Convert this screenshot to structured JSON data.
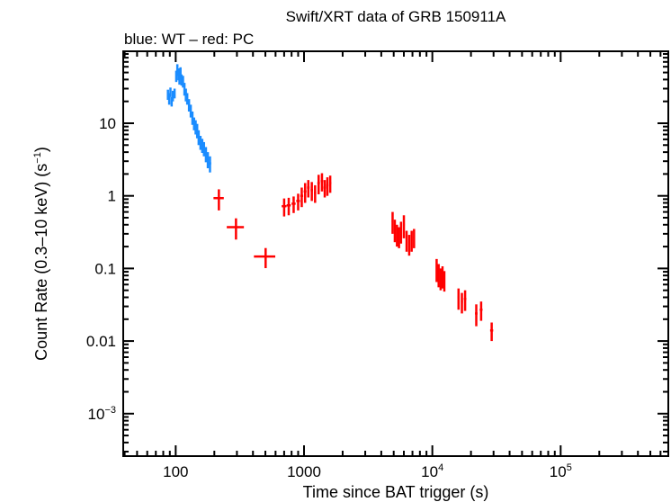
{
  "chart_data": {
    "type": "scatter",
    "title": "Swift/XRT data of GRB 150911A",
    "subtitle": "blue: WT – red: PC",
    "xlabel": "Time since BAT trigger (s)",
    "ylabel": "Count Rate (0.3–10 keV) (s",
    "ylabel_sup": "−1",
    "ylabel_end": ")",
    "xscale": "log",
    "yscale": "log",
    "xlim": [
      39,
      690000
    ],
    "ylim": [
      0.00026,
      98
    ],
    "grid": false,
    "x_ticks": [
      {
        "v": 100,
        "label": "100"
      },
      {
        "v": 1000,
        "label": "1000"
      },
      {
        "v": 10000,
        "label": "10",
        "sup": "4"
      },
      {
        "v": 100000,
        "label": "10",
        "sup": "5"
      }
    ],
    "y_ticks": [
      {
        "v": 0.001,
        "label": "10",
        "sup": "−3"
      },
      {
        "v": 0.01,
        "label": "0.01"
      },
      {
        "v": 0.1,
        "label": "0.1"
      },
      {
        "v": 1,
        "label": "1"
      },
      {
        "v": 10,
        "label": "10"
      }
    ],
    "series": [
      {
        "name": "WT",
        "color": "#1a8cff",
        "points": [
          {
            "t": 87,
            "rate": 25,
            "t_err": 1,
            "rate_err": 4
          },
          {
            "t": 89,
            "rate": 22,
            "t_err": 1,
            "rate_err": 4
          },
          {
            "t": 91,
            "rate": 27,
            "t_err": 1,
            "rate_err": 4
          },
          {
            "t": 93,
            "rate": 20,
            "t_err": 1,
            "rate_err": 3
          },
          {
            "t": 95,
            "rate": 24,
            "t_err": 1,
            "rate_err": 4
          },
          {
            "t": 98,
            "rate": 26,
            "t_err": 1,
            "rate_err": 4
          },
          {
            "t": 101,
            "rate": 45,
            "t_err": 1,
            "rate_err": 8
          },
          {
            "t": 103,
            "rate": 55,
            "t_err": 1,
            "rate_err": 10
          },
          {
            "t": 105,
            "rate": 48,
            "t_err": 1,
            "rate_err": 9
          },
          {
            "t": 107,
            "rate": 42,
            "t_err": 1,
            "rate_err": 8
          },
          {
            "t": 109,
            "rate": 50,
            "t_err": 1,
            "rate_err": 9
          },
          {
            "t": 111,
            "rate": 40,
            "t_err": 1,
            "rate_err": 7
          },
          {
            "t": 114,
            "rate": 38,
            "t_err": 1.5,
            "rate_err": 7
          },
          {
            "t": 117,
            "rate": 30,
            "t_err": 1.5,
            "rate_err": 6
          },
          {
            "t": 120,
            "rate": 25,
            "t_err": 1.5,
            "rate_err": 5
          },
          {
            "t": 123,
            "rate": 22,
            "t_err": 1.5,
            "rate_err": 4
          },
          {
            "t": 127,
            "rate": 18,
            "t_err": 2,
            "rate_err": 3.5
          },
          {
            "t": 131,
            "rate": 15,
            "t_err": 2,
            "rate_err": 3
          },
          {
            "t": 135,
            "rate": 12,
            "t_err": 2,
            "rate_err": 2.5
          },
          {
            "t": 139,
            "rate": 10,
            "t_err": 2,
            "rate_err": 2
          },
          {
            "t": 143,
            "rate": 9,
            "t_err": 2,
            "rate_err": 2
          },
          {
            "t": 147,
            "rate": 8,
            "t_err": 2,
            "rate_err": 1.8
          },
          {
            "t": 151,
            "rate": 6.5,
            "t_err": 2,
            "rate_err": 1.5
          },
          {
            "t": 156,
            "rate": 5.5,
            "t_err": 2.5,
            "rate_err": 1.2
          },
          {
            "t": 161,
            "rate": 5.0,
            "t_err": 2.5,
            "rate_err": 1.1
          },
          {
            "t": 166,
            "rate": 4.5,
            "t_err": 2.5,
            "rate_err": 1
          },
          {
            "t": 172,
            "rate": 3.8,
            "t_err": 3,
            "rate_err": 0.9
          },
          {
            "t": 178,
            "rate": 3.2,
            "t_err": 3,
            "rate_err": 0.8
          },
          {
            "t": 185,
            "rate": 2.8,
            "t_err": 4,
            "rate_err": 0.7
          }
        ]
      },
      {
        "name": "PC",
        "color": "#ff0000",
        "points": [
          {
            "t": 217,
            "rate": 0.93,
            "t_err": 20,
            "rate_err": 0.3
          },
          {
            "t": 295,
            "rate": 0.37,
            "t_err": 45,
            "rate_err": 0.12
          },
          {
            "t": 502,
            "rate": 0.146,
            "t_err": 95,
            "rate_err": 0.045
          },
          {
            "t": 700,
            "rate": 0.72,
            "t_err": 30,
            "rate_err": 0.2
          },
          {
            "t": 760,
            "rate": 0.74,
            "t_err": 28,
            "rate_err": 0.2
          },
          {
            "t": 830,
            "rate": 0.78,
            "t_err": 30,
            "rate_err": 0.2
          },
          {
            "t": 900,
            "rate": 0.85,
            "t_err": 30,
            "rate_err": 0.22
          },
          {
            "t": 960,
            "rate": 1.0,
            "t_err": 25,
            "rate_err": 0.3
          },
          {
            "t": 1020,
            "rate": 1.15,
            "t_err": 25,
            "rate_err": 0.35
          },
          {
            "t": 1080,
            "rate": 1.3,
            "t_err": 25,
            "rate_err": 0.35
          },
          {
            "t": 1150,
            "rate": 1.2,
            "t_err": 25,
            "rate_err": 0.35
          },
          {
            "t": 1220,
            "rate": 1.1,
            "t_err": 25,
            "rate_err": 0.3
          },
          {
            "t": 1300,
            "rate": 1.5,
            "t_err": 30,
            "rate_err": 0.45
          },
          {
            "t": 1380,
            "rate": 1.6,
            "t_err": 30,
            "rate_err": 0.45
          },
          {
            "t": 1450,
            "rate": 1.3,
            "t_err": 30,
            "rate_err": 0.35
          },
          {
            "t": 1520,
            "rate": 1.4,
            "t_err": 30,
            "rate_err": 0.4
          },
          {
            "t": 1600,
            "rate": 1.5,
            "t_err": 30,
            "rate_err": 0.4
          },
          {
            "t": 4900,
            "rate": 0.45,
            "t_err": 80,
            "rate_err": 0.15
          },
          {
            "t": 5100,
            "rate": 0.35,
            "t_err": 80,
            "rate_err": 0.12
          },
          {
            "t": 5300,
            "rate": 0.3,
            "t_err": 80,
            "rate_err": 0.1
          },
          {
            "t": 5500,
            "rate": 0.28,
            "t_err": 80,
            "rate_err": 0.09
          },
          {
            "t": 5700,
            "rate": 0.33,
            "t_err": 80,
            "rate_err": 0.11
          },
          {
            "t": 6000,
            "rate": 0.4,
            "t_err": 100,
            "rate_err": 0.14
          },
          {
            "t": 6300,
            "rate": 0.25,
            "t_err": 100,
            "rate_err": 0.08
          },
          {
            "t": 6600,
            "rate": 0.22,
            "t_err": 100,
            "rate_err": 0.07
          },
          {
            "t": 6900,
            "rate": 0.25,
            "t_err": 100,
            "rate_err": 0.08
          },
          {
            "t": 7200,
            "rate": 0.27,
            "t_err": 100,
            "rate_err": 0.08
          },
          {
            "t": 10800,
            "rate": 0.1,
            "t_err": 150,
            "rate_err": 0.035
          },
          {
            "t": 11200,
            "rate": 0.085,
            "t_err": 150,
            "rate_err": 0.03
          },
          {
            "t": 11600,
            "rate": 0.075,
            "t_err": 150,
            "rate_err": 0.025
          },
          {
            "t": 12000,
            "rate": 0.08,
            "t_err": 150,
            "rate_err": 0.027
          },
          {
            "t": 12400,
            "rate": 0.07,
            "t_err": 150,
            "rate_err": 0.022
          },
          {
            "t": 16000,
            "rate": 0.04,
            "t_err": 300,
            "rate_err": 0.013
          },
          {
            "t": 17000,
            "rate": 0.035,
            "t_err": 300,
            "rate_err": 0.011
          },
          {
            "t": 18000,
            "rate": 0.038,
            "t_err": 400,
            "rate_err": 0.012
          },
          {
            "t": 22000,
            "rate": 0.024,
            "t_err": 500,
            "rate_err": 0.008
          },
          {
            "t": 24000,
            "rate": 0.027,
            "t_err": 600,
            "rate_err": 0.008
          },
          {
            "t": 29000,
            "rate": 0.014,
            "t_err": 800,
            "rate_err": 0.004
          }
        ]
      }
    ]
  }
}
